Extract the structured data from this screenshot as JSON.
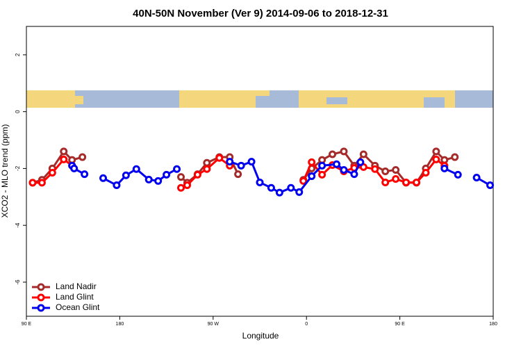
{
  "chart_data": {
    "type": "line",
    "title": "40N-50N November (Ver 9)   2014-09-06 to 2018-12-31",
    "xlabel": "Longitude",
    "ylabel": "XCO2 - MLO trend (ppm)",
    "xlim": [
      90,
      540
    ],
    "xticks": [
      {
        "value": 90,
        "label": "90 E"
      },
      {
        "value": 180,
        "label": "180"
      },
      {
        "value": 270,
        "label": "90 W"
      },
      {
        "value": 360,
        "label": "0"
      },
      {
        "value": 450,
        "label": "90 E"
      },
      {
        "value": 540,
        "label": "180"
      }
    ],
    "ylim": [
      -7.2,
      3
    ],
    "yticks": [
      -6,
      -4,
      -2,
      0,
      2
    ],
    "legend": "bottom-left",
    "series": [
      {
        "name": "Land Nadir",
        "color": "#a52a2a",
        "x": [
          96,
          105,
          115,
          126,
          134,
          144,
          null,
          239,
          245,
          255,
          264,
          276,
          286,
          294,
          null,
          357,
          365,
          375,
          385,
          396,
          406,
          415,
          426,
          436,
          446,
          456,
          466,
          475,
          485,
          493,
          503
        ],
        "values": [
          -2.5,
          -2.4,
          -2.0,
          -1.4,
          -1.7,
          -1.6,
          null,
          -2.3,
          -2.5,
          -2.2,
          -1.8,
          -1.6,
          -1.6,
          -2.2,
          null,
          -2.4,
          -2.0,
          -1.7,
          -1.5,
          -1.4,
          -1.9,
          -1.5,
          -1.9,
          -2.1,
          -2.05,
          -2.5,
          -2.5,
          -2.0,
          -1.4,
          -1.7,
          -1.6
        ]
      },
      {
        "name": "Land Glint",
        "color": "#ff0000",
        "x": [
          96,
          105,
          115,
          126,
          134,
          null,
          239,
          245,
          255,
          264,
          276,
          286,
          null,
          357,
          365,
          375,
          385,
          396,
          406,
          415,
          426,
          436,
          446,
          456,
          466,
          475,
          485,
          493
        ],
        "values": [
          -2.5,
          -2.5,
          -2.15,
          -1.68,
          -1.9,
          null,
          -2.68,
          -2.59,
          -2.22,
          -2.02,
          -1.63,
          -1.9,
          null,
          -2.44,
          -1.78,
          -2.22,
          -1.88,
          -2.1,
          -1.98,
          -1.95,
          -2.02,
          -2.49,
          -2.37,
          -2.49,
          -2.49,
          -2.15,
          -1.68,
          -1.9
        ]
      },
      {
        "name": "Ocean Glint",
        "color": "#0000ee",
        "x": [
          134,
          136,
          146,
          null,
          164,
          177,
          186,
          196,
          208,
          217,
          225,
          235,
          null,
          286,
          297,
          307,
          315,
          326,
          334,
          345,
          353,
          365,
          375,
          389,
          396,
          406,
          412,
          null,
          493,
          506,
          null,
          524,
          537
        ],
        "values": [
          -1.9,
          -2.0,
          -2.2,
          null,
          -2.34,
          -2.59,
          -2.24,
          -2.02,
          -2.39,
          -2.44,
          -2.22,
          -2.02,
          null,
          -1.76,
          -1.9,
          -1.76,
          -2.49,
          -2.68,
          -2.85,
          -2.68,
          -2.83,
          -2.27,
          -1.9,
          -1.85,
          -2.05,
          -2.2,
          -1.78,
          null,
          -2.0,
          -2.22,
          null,
          -2.32,
          -2.59
        ]
      }
    ]
  }
}
